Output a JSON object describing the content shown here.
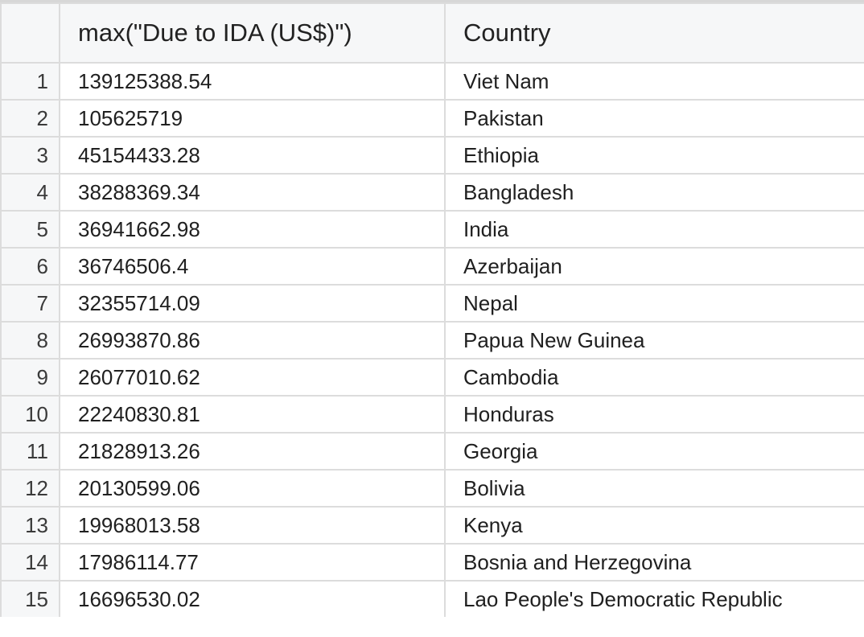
{
  "columns": {
    "index": "",
    "due": "max(\"Due to IDA (US$)\")",
    "country": "Country"
  },
  "rows": [
    {
      "index": "1",
      "due": "139125388.54",
      "country": "Viet Nam"
    },
    {
      "index": "2",
      "due": "105625719",
      "country": "Pakistan"
    },
    {
      "index": "3",
      "due": "45154433.28",
      "country": "Ethiopia"
    },
    {
      "index": "4",
      "due": "38288369.34",
      "country": "Bangladesh"
    },
    {
      "index": "5",
      "due": "36941662.98",
      "country": "India"
    },
    {
      "index": "6",
      "due": "36746506.4",
      "country": "Azerbaijan"
    },
    {
      "index": "7",
      "due": "32355714.09",
      "country": "Nepal"
    },
    {
      "index": "8",
      "due": "26993870.86",
      "country": "Papua New Guinea"
    },
    {
      "index": "9",
      "due": "26077010.62",
      "country": "Cambodia"
    },
    {
      "index": "10",
      "due": "22240830.81",
      "country": "Honduras"
    },
    {
      "index": "11",
      "due": "21828913.26",
      "country": "Georgia"
    },
    {
      "index": "12",
      "due": "20130599.06",
      "country": "Bolivia"
    },
    {
      "index": "13",
      "due": "19968013.58",
      "country": "Kenya"
    },
    {
      "index": "14",
      "due": "17986114.77",
      "country": "Bosnia and Herzegovina"
    },
    {
      "index": "15",
      "due": "16696530.02",
      "country": "Lao People's Democratic Republic"
    }
  ]
}
